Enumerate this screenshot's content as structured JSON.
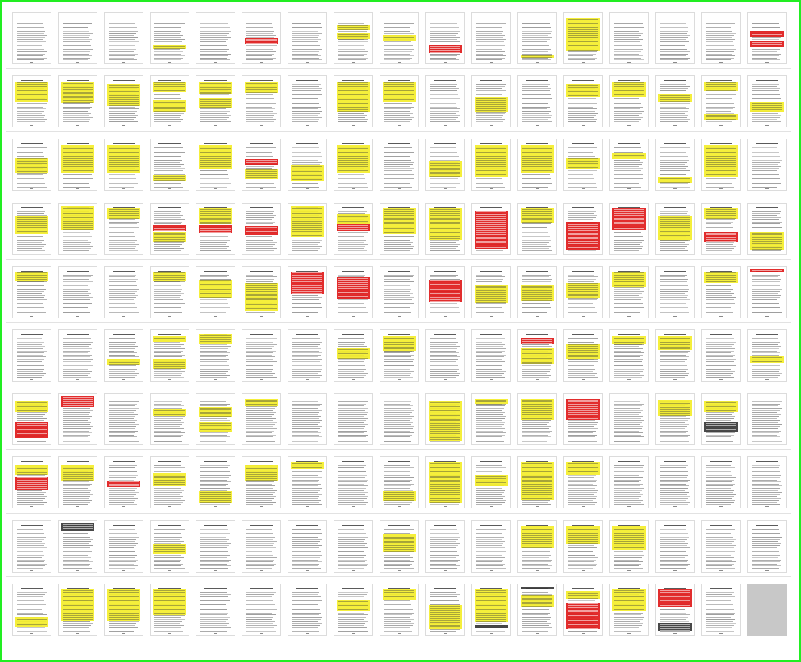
{
  "view": {
    "title": "",
    "columns": 17,
    "rows": 10,
    "colors": {
      "frame": "#22ee22",
      "yellow": "#f4ee2a",
      "red": "#e01b1b",
      "dark": "#3a3a3a",
      "blank": "#c8c8c8"
    }
  },
  "pages": [
    {
      "h": []
    },
    {
      "h": []
    },
    {
      "h": []
    },
    {
      "h": [
        [
          "y",
          0.62,
          0.08
        ]
      ]
    },
    {
      "h": []
    },
    {
      "h": [
        [
          "r",
          0.48,
          0.12
        ]
      ]
    },
    {
      "h": []
    },
    {
      "h": [
        [
          "y",
          0.22,
          0.12
        ],
        [
          "y",
          0.4,
          0.1
        ]
      ]
    },
    {
      "h": [
        [
          "y",
          0.42,
          0.12
        ]
      ]
    },
    {
      "h": [
        [
          "r",
          0.62,
          0.16
        ]
      ]
    },
    {
      "h": []
    },
    {
      "h": [
        [
          "y",
          0.8,
          0.06
        ]
      ]
    },
    {
      "h": [
        [
          "y",
          0.1,
          0.62
        ]
      ]
    },
    {
      "h": []
    },
    {
      "h": []
    },
    {
      "h": []
    },
    {
      "h": [
        [
          "r",
          0.35,
          0.12
        ],
        [
          "r",
          0.55,
          0.1
        ]
      ]
    },
    {
      "h": [
        [
          "y",
          0.1,
          0.4
        ]
      ]
    },
    {
      "h": [
        [
          "y",
          0.12,
          0.4
        ]
      ]
    },
    {
      "h": [
        [
          "y",
          0.15,
          0.42
        ]
      ]
    },
    {
      "h": [
        [
          "y",
          0.1,
          0.2
        ],
        [
          "y",
          0.45,
          0.25
        ]
      ]
    },
    {
      "h": [
        [
          "y",
          0.12,
          0.22
        ],
        [
          "y",
          0.42,
          0.2
        ]
      ]
    },
    {
      "h": [
        [
          "y",
          0.12,
          0.2
        ]
      ]
    },
    {
      "h": []
    },
    {
      "h": [
        [
          "y",
          0.1,
          0.6
        ]
      ]
    },
    {
      "h": [
        [
          "y",
          0.1,
          0.4
        ]
      ]
    },
    {
      "h": []
    },
    {
      "h": [
        [
          "y",
          0.4,
          0.3
        ]
      ]
    },
    {
      "h": []
    },
    {
      "h": [
        [
          "y",
          0.15,
          0.25
        ]
      ]
    },
    {
      "h": [
        [
          "y",
          0.1,
          0.3
        ]
      ]
    },
    {
      "h": [
        [
          "y",
          0.35,
          0.15
        ]
      ]
    },
    {
      "h": [
        [
          "y",
          0.1,
          0.18
        ],
        [
          "y",
          0.72,
          0.12
        ]
      ]
    },
    {
      "h": [
        [
          "y",
          0.5,
          0.18
        ]
      ]
    },
    {
      "h": [
        [
          "y",
          0.35,
          0.3
        ]
      ]
    },
    {
      "h": [
        [
          "y",
          0.1,
          0.55
        ]
      ]
    },
    {
      "h": [
        [
          "y",
          0.1,
          0.55
        ]
      ]
    },
    {
      "h": [
        [
          "y",
          0.68,
          0.12
        ]
      ]
    },
    {
      "h": [
        [
          "y",
          0.1,
          0.45
        ]
      ]
    },
    {
      "h": [
        [
          "r",
          0.38,
          0.1
        ],
        [
          "y",
          0.55,
          0.2
        ]
      ]
    },
    {
      "h": [
        [
          "y",
          0.5,
          0.28
        ]
      ]
    },
    {
      "h": [
        [
          "y",
          0.1,
          0.55
        ]
      ]
    },
    {
      "h": []
    },
    {
      "h": [
        [
          "y",
          0.4,
          0.3
        ]
      ]
    },
    {
      "h": [
        [
          "y",
          0.1,
          0.62
        ]
      ]
    },
    {
      "h": [
        [
          "y",
          0.1,
          0.55
        ]
      ]
    },
    {
      "h": [
        [
          "y",
          0.35,
          0.2
        ]
      ]
    },
    {
      "h": [
        [
          "y",
          0.25,
          0.12
        ]
      ]
    },
    {
      "h": [
        [
          "y",
          0.72,
          0.1
        ]
      ]
    },
    {
      "h": [
        [
          "y",
          0.1,
          0.6
        ]
      ]
    },
    {
      "h": []
    },
    {
      "h": [
        [
          "y",
          0.25,
          0.35
        ]
      ]
    },
    {
      "h": [
        [
          "y",
          0.05,
          0.45
        ]
      ]
    },
    {
      "h": [
        [
          "y",
          0.1,
          0.2
        ]
      ]
    },
    {
      "h": [
        [
          "r",
          0.42,
          0.12
        ],
        [
          "y",
          0.55,
          0.2
        ]
      ]
    },
    {
      "h": [
        [
          "y",
          0.1,
          0.3
        ],
        [
          "r",
          0.42,
          0.14
        ]
      ]
    },
    {
      "h": [
        [
          "r",
          0.45,
          0.16
        ]
      ]
    },
    {
      "h": [
        [
          "y",
          0.05,
          0.6
        ]
      ]
    },
    {
      "h": [
        [
          "r",
          0.4,
          0.14
        ],
        [
          "y",
          0.2,
          0.2
        ]
      ]
    },
    {
      "h": [
        [
          "y",
          0.1,
          0.5
        ]
      ]
    },
    {
      "h": [
        [
          "y",
          0.1,
          0.6
        ]
      ]
    },
    {
      "h": [
        [
          "r",
          0.15,
          0.72
        ]
      ]
    },
    {
      "h": [
        [
          "y",
          0.1,
          0.28
        ]
      ]
    },
    {
      "h": [
        [
          "r",
          0.35,
          0.55
        ]
      ]
    },
    {
      "h": [
        [
          "r",
          0.1,
          0.4
        ]
      ]
    },
    {
      "h": [
        [
          "y",
          0.25,
          0.45
        ]
      ]
    },
    {
      "h": [
        [
          "y",
          0.1,
          0.2
        ],
        [
          "r",
          0.55,
          0.2
        ]
      ]
    },
    {
      "h": [
        [
          "y",
          0.55,
          0.35
        ]
      ]
    },
    {
      "h": [
        [
          "y",
          0.1,
          0.18
        ]
      ]
    },
    {
      "h": []
    },
    {
      "h": []
    },
    {
      "h": [
        [
          "y",
          0.1,
          0.18
        ]
      ]
    },
    {
      "h": [
        [
          "y",
          0.25,
          0.35
        ]
      ]
    },
    {
      "h": [
        [
          "y",
          0.3,
          0.55
        ]
      ]
    },
    {
      "h": [
        [
          "r",
          0.1,
          0.42
        ]
      ]
    },
    {
      "h": [
        [
          "r",
          0.2,
          0.42
        ]
      ]
    },
    {
      "h": []
    },
    {
      "h": [
        [
          "r",
          0.25,
          0.42
        ]
      ]
    },
    {
      "h": [
        [
          "y",
          0.35,
          0.35
        ]
      ]
    },
    {
      "h": [
        [
          "y",
          0.35,
          0.3
        ]
      ]
    },
    {
      "h": [
        [
          "y",
          0.3,
          0.3
        ]
      ]
    },
    {
      "h": [
        [
          "y",
          0.1,
          0.3
        ]
      ]
    },
    {
      "h": []
    },
    {
      "h": [
        [
          "y",
          0.1,
          0.2
        ]
      ]
    },
    {
      "h": [
        [
          "r",
          0.05,
          0.05
        ]
      ]
    },
    {
      "h": []
    },
    {
      "h": []
    },
    {
      "h": [
        [
          "y",
          0.55,
          0.12
        ]
      ]
    },
    {
      "h": [
        [
          "y",
          0.1,
          0.12
        ],
        [
          "y",
          0.55,
          0.2
        ]
      ]
    },
    {
      "h": [
        [
          "y",
          0.08,
          0.2
        ]
      ]
    },
    {
      "h": []
    },
    {
      "h": []
    },
    {
      "h": [
        [
          "y",
          0.35,
          0.2
        ]
      ]
    },
    {
      "h": [
        [
          "y",
          0.1,
          0.3
        ]
      ]
    },
    {
      "h": []
    },
    {
      "h": []
    },
    {
      "h": [
        [
          "r",
          0.15,
          0.12
        ],
        [
          "y",
          0.35,
          0.3
        ]
      ]
    },
    {
      "h": [
        [
          "y",
          0.25,
          0.3
        ]
      ]
    },
    {
      "h": [
        [
          "y",
          0.1,
          0.18
        ]
      ]
    },
    {
      "h": [
        [
          "y",
          0.1,
          0.28
        ]
      ]
    },
    {
      "h": []
    },
    {
      "h": [
        [
          "y",
          0.5,
          0.12
        ]
      ]
    },
    {
      "h": [
        [
          "y",
          0.15,
          0.2
        ],
        [
          "r",
          0.55,
          0.3
        ]
      ]
    },
    {
      "h": [
        [
          "r",
          0.05,
          0.2
        ]
      ]
    },
    {
      "h": []
    },
    {
      "h": [
        [
          "y",
          0.3,
          0.12
        ]
      ]
    },
    {
      "h": [
        [
          "y",
          0.25,
          0.2
        ],
        [
          "y",
          0.55,
          0.18
        ]
      ]
    },
    {
      "h": [
        [
          "y",
          0.1,
          0.14
        ]
      ]
    },
    {
      "h": []
    },
    {
      "h": []
    },
    {
      "h": []
    },
    {
      "h": [
        [
          "y",
          0.15,
          0.75
        ]
      ]
    },
    {
      "h": [
        [
          "y",
          0.1,
          0.1
        ]
      ]
    },
    {
      "h": [
        [
          "y",
          0.1,
          0.4
        ]
      ]
    },
    {
      "h": [
        [
          "r",
          0.1,
          0.4
        ]
      ]
    },
    {
      "h": []
    },
    {
      "h": [
        [
          "y",
          0.12,
          0.3
        ]
      ]
    },
    {
      "h": [
        [
          "y",
          0.15,
          0.2
        ],
        [
          "dk",
          0.55,
          0.18
        ]
      ]
    },
    {
      "h": []
    },
    {
      "h": [
        [
          "y",
          0.15,
          0.2
        ],
        [
          "r",
          0.38,
          0.25
        ]
      ]
    },
    {
      "h": [
        [
          "y",
          0.15,
          0.3
        ]
      ]
    },
    {
      "h": [
        [
          "r",
          0.45,
          0.12
        ]
      ]
    },
    {
      "h": [
        [
          "y",
          0.3,
          0.25
        ]
      ]
    },
    {
      "h": [
        [
          "y",
          0.65,
          0.22
        ]
      ]
    },
    {
      "h": [
        [
          "y",
          0.15,
          0.3
        ]
      ]
    },
    {
      "h": [
        [
          "y",
          0.1,
          0.12
        ]
      ]
    },
    {
      "h": []
    },
    {
      "h": [
        [
          "y",
          0.65,
          0.2
        ]
      ]
    },
    {
      "h": [
        [
          "y",
          0.1,
          0.78
        ]
      ]
    },
    {
      "h": [
        [
          "y",
          0.35,
          0.2
        ]
      ]
    },
    {
      "h": [
        [
          "y",
          0.1,
          0.72
        ]
      ]
    },
    {
      "h": [
        [
          "y",
          0.1,
          0.25
        ]
      ]
    },
    {
      "h": []
    },
    {
      "h": []
    },
    {
      "h": []
    },
    {
      "h": []
    },
    {
      "h": []
    },
    {
      "h": [
        [
          "dk",
          0.05,
          0.15
        ]
      ]
    },
    {
      "h": []
    },
    {
      "h": [
        [
          "y",
          0.45,
          0.2
        ]
      ]
    },
    {
      "h": []
    },
    {
      "h": []
    },
    {
      "h": []
    },
    {
      "h": []
    },
    {
      "h": [
        [
          "y",
          0.25,
          0.35
        ]
      ]
    },
    {
      "h": []
    },
    {
      "h": []
    },
    {
      "h": [
        [
          "y",
          0.1,
          0.42
        ]
      ]
    },
    {
      "h": [
        [
          "y",
          0.1,
          0.35
        ]
      ]
    },
    {
      "h": [
        [
          "y",
          0.1,
          0.45
        ]
      ]
    },
    {
      "h": []
    },
    {
      "h": []
    },
    {
      "h": []
    },
    {
      "h": [
        [
          "y",
          0.62,
          0.2
        ]
      ]
    },
    {
      "h": [
        [
          "y",
          0.1,
          0.6
        ]
      ]
    },
    {
      "h": [
        [
          "y",
          0.1,
          0.6
        ]
      ]
    },
    {
      "h": [
        [
          "y",
          0.1,
          0.5
        ]
      ]
    },
    {
      "h": []
    },
    {
      "h": []
    },
    {
      "h": []
    },
    {
      "h": [
        [
          "y",
          0.3,
          0.2
        ]
      ]
    },
    {
      "h": [
        [
          "y",
          0.1,
          0.2
        ]
      ]
    },
    {
      "h": [
        [
          "y",
          0.4,
          0.45
        ]
      ]
    },
    {
      "h": [
        [
          "y",
          0.1,
          0.62
        ],
        [
          "dk",
          0.78,
          0.05
        ]
      ]
    },
    {
      "h": [
        [
          "dk",
          0.05,
          0.05
        ],
        [
          "y",
          0.2,
          0.25
        ]
      ]
    },
    {
      "h": [
        [
          "y",
          0.12,
          0.15
        ],
        [
          "r",
          0.35,
          0.5
        ]
      ]
    },
    {
      "h": [
        [
          "y",
          0.1,
          0.4
        ]
      ]
    },
    {
      "h": [
        [
          "r",
          0.1,
          0.35
        ],
        [
          "dk",
          0.75,
          0.15
        ]
      ]
    },
    {
      "h": []
    },
    {
      "blank": true
    }
  ]
}
